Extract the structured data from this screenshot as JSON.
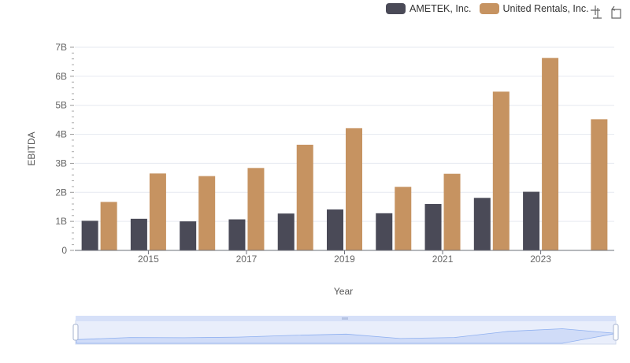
{
  "legend": {
    "series_a": "AMETEK, Inc.",
    "series_b": "United Rentals, Inc."
  },
  "toolbox": [
    "zoom-icon",
    "restore-icon"
  ],
  "colors": {
    "series_a": "#4a4a57",
    "series_b": "#c69361",
    "grid": "#e6e9f0",
    "slider": "#d6e0f8"
  },
  "chart_data": {
    "type": "bar",
    "xlabel": "Year",
    "ylabel": "EBITDA",
    "ylim": [
      0,
      7000000000
    ],
    "yticks": [
      "0",
      "1B",
      "2B",
      "3B",
      "4B",
      "5B",
      "6B",
      "7B"
    ],
    "xtick_labels": [
      "2015",
      "2017",
      "2019",
      "2021",
      "2023"
    ],
    "categories": [
      "2014",
      "2015",
      "2016",
      "2017",
      "2018",
      "2019",
      "2020",
      "2021",
      "2022",
      "2023",
      "2024"
    ],
    "series": [
      {
        "name": "AMETEK, Inc.",
        "values": [
          1020000000,
          1090000000,
          1000000000,
          1070000000,
          1270000000,
          1410000000,
          1280000000,
          1600000000,
          1810000000,
          2020000000,
          null
        ]
      },
      {
        "name": "United Rentals, Inc.",
        "values": [
          1670000000,
          2650000000,
          2560000000,
          2840000000,
          3640000000,
          4210000000,
          2190000000,
          2640000000,
          5470000000,
          6630000000,
          4520000000
        ]
      }
    ],
    "grid": true,
    "legend_position": "top-right",
    "data_zoom": true
  }
}
